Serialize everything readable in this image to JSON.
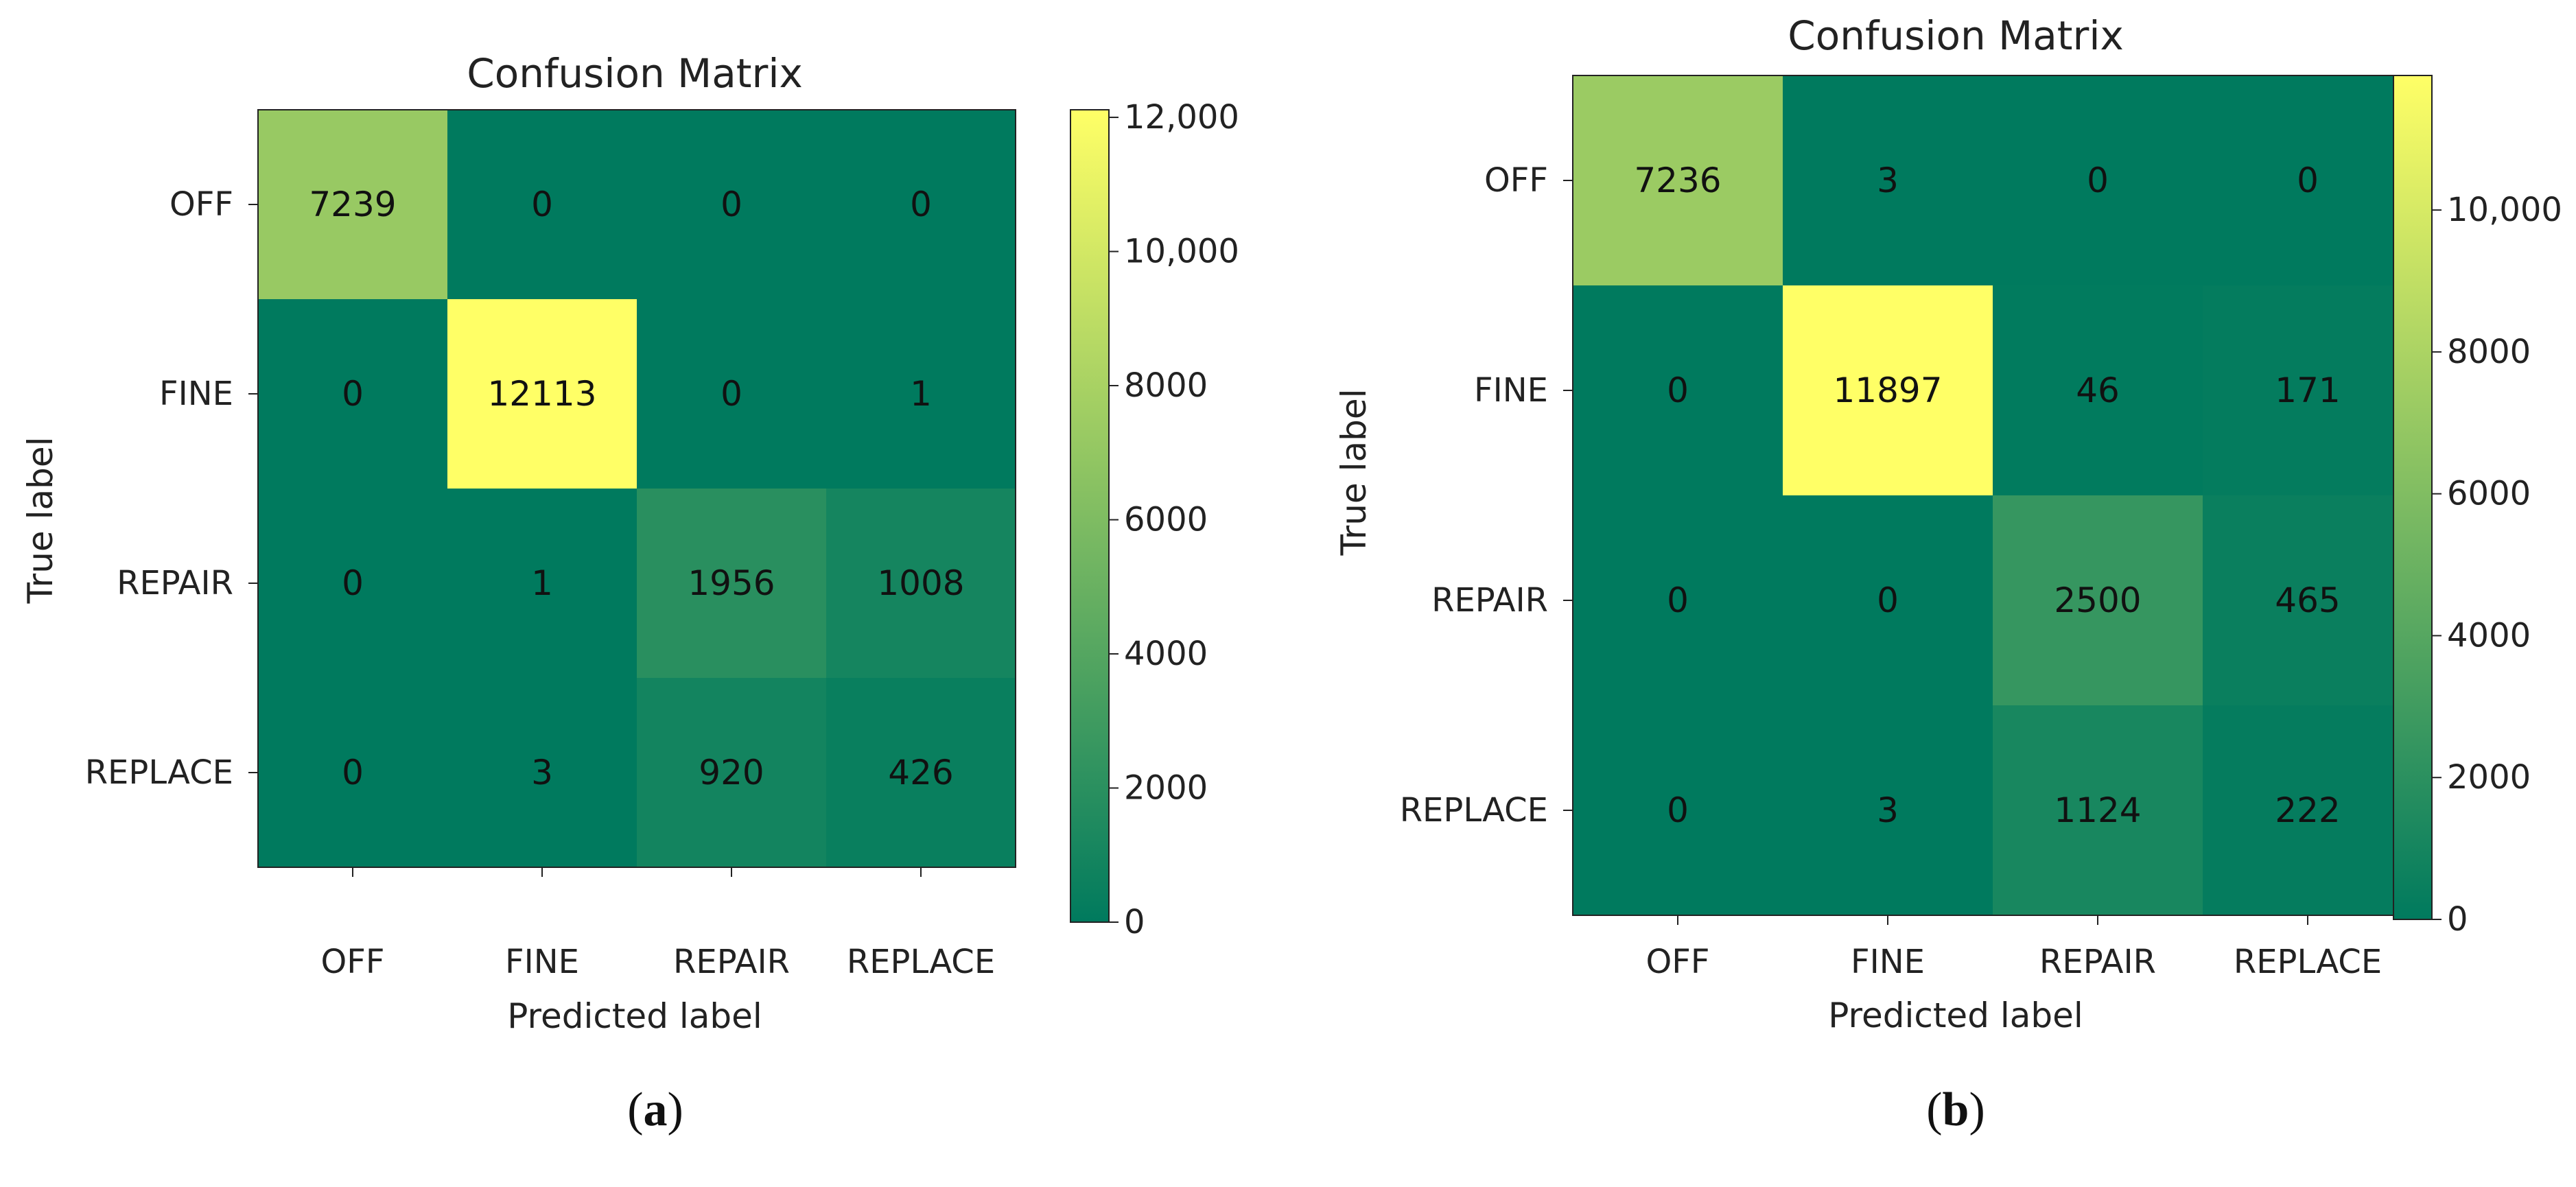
{
  "chart_data": [
    {
      "type": "heatmap",
      "title": "Confusion Matrix",
      "xlabel": "Predicted label",
      "ylabel": "True label",
      "x_categories": [
        "OFF",
        "FINE",
        "REPAIR",
        "REPLACE"
      ],
      "y_categories": [
        "OFF",
        "FINE",
        "REPAIR",
        "REPLACE"
      ],
      "values": [
        [
          7239,
          0,
          0,
          0
        ],
        [
          0,
          12113,
          0,
          1
        ],
        [
          0,
          1,
          1956,
          1008
        ],
        [
          0,
          3,
          920,
          426
        ]
      ],
      "colorbar": {
        "min": 0,
        "max": 12113,
        "ticks": [
          0,
          2000,
          4000,
          6000,
          8000,
          10000,
          12000
        ],
        "tick_labels": [
          "0",
          "2000",
          "4000",
          "6000",
          "8000",
          "10,000",
          "12,000"
        ]
      },
      "colormap": [
        "#007a5e",
        "#ffff66"
      ],
      "caption": "a"
    },
    {
      "type": "heatmap",
      "title": "Confusion Matrix",
      "xlabel": "Predicted label",
      "ylabel": "True label",
      "x_categories": [
        "OFF",
        "FINE",
        "REPAIR",
        "REPLACE"
      ],
      "y_categories": [
        "OFF",
        "FINE",
        "REPAIR",
        "REPLACE"
      ],
      "values": [
        [
          7236,
          3,
          0,
          0
        ],
        [
          0,
          11897,
          46,
          171
        ],
        [
          0,
          0,
          2500,
          465
        ],
        [
          0,
          3,
          1124,
          222
        ]
      ],
      "colorbar": {
        "min": 0,
        "max": 11897,
        "ticks": [
          0,
          2000,
          4000,
          6000,
          8000,
          10000
        ],
        "tick_labels": [
          "0",
          "2000",
          "4000",
          "6000",
          "8000",
          "10,000"
        ]
      },
      "colormap": [
        "#007a5e",
        "#ffff66"
      ],
      "caption": "b"
    }
  ]
}
